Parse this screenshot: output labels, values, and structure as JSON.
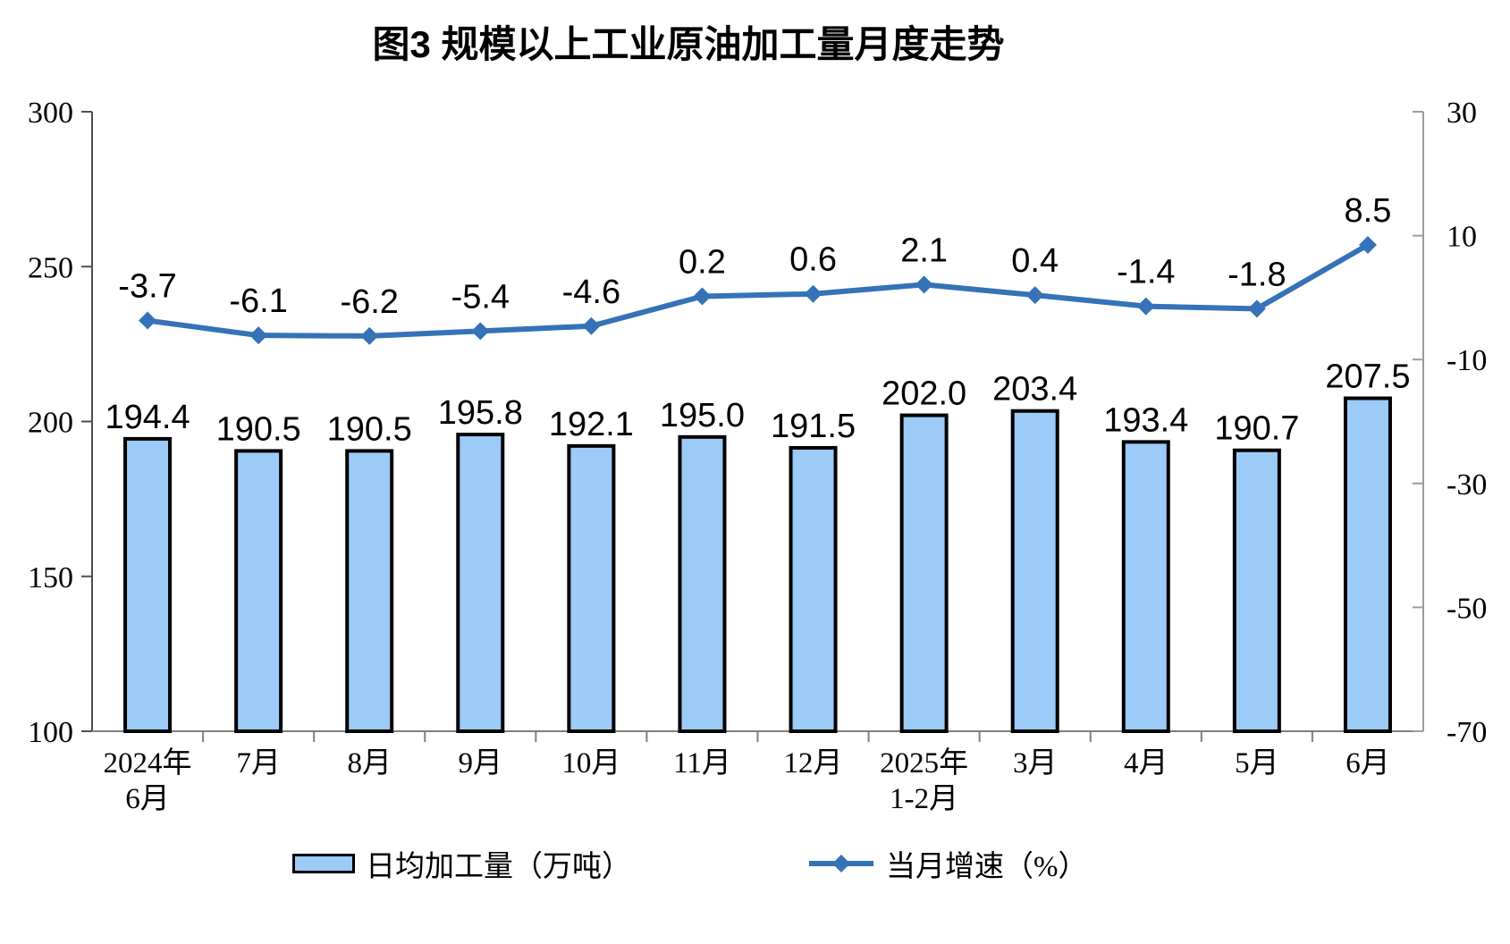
{
  "chart_data": {
    "type": "combo",
    "title": "图3  规模以上工业原油加工量月度走势",
    "categories": [
      [
        "2024年",
        "6月"
      ],
      [
        "7月"
      ],
      [
        "8月"
      ],
      [
        "9月"
      ],
      [
        "10月"
      ],
      [
        "11月"
      ],
      [
        "12月"
      ],
      [
        "2025年",
        "1-2月"
      ],
      [
        "3月"
      ],
      [
        "4月"
      ],
      [
        "5月"
      ],
      [
        "6月"
      ]
    ],
    "series": [
      {
        "name": "日均加工量（万吨）",
        "type": "bar",
        "axis": "left",
        "values": [
          194.4,
          190.5,
          190.5,
          195.8,
          192.1,
          195.0,
          191.5,
          202.0,
          203.4,
          193.4,
          190.7,
          207.5
        ]
      },
      {
        "name": "当月增速（%）",
        "type": "line",
        "axis": "right",
        "values": [
          -3.7,
          -6.1,
          -6.2,
          -5.4,
          -4.6,
          0.2,
          0.6,
          2.1,
          0.4,
          -1.4,
          -1.8,
          8.5
        ]
      }
    ],
    "left_axis": {
      "min": 100,
      "max": 300,
      "ticks": [
        100,
        150,
        200,
        250,
        300
      ]
    },
    "right_axis": {
      "min": -70,
      "max": 30,
      "ticks": [
        -70,
        -50,
        -30,
        -10,
        10,
        30
      ]
    },
    "colors": {
      "bar_fill": "#9DCBF7",
      "bar_border": "#000000",
      "line": "#3572B7"
    },
    "layout": {
      "legend_position": "bottom",
      "grid": false,
      "data_labels": true
    }
  }
}
